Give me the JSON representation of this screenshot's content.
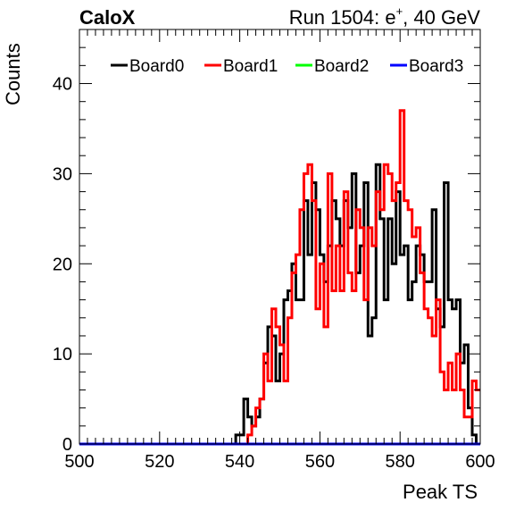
{
  "chart_data": {
    "type": "line",
    "drawstyle": "steps",
    "title_left": "CaloX",
    "title_right": {
      "prefix": "Run 1504: e",
      "sup": "+",
      "suffix": ", 40 GeV"
    },
    "xlabel": "Peak TS",
    "ylabel": "Counts",
    "xlim": [
      500,
      600
    ],
    "ylim": [
      0,
      46
    ],
    "xticks": [
      500,
      520,
      540,
      560,
      580,
      600
    ],
    "yticks": [
      0,
      10,
      20,
      30,
      40
    ],
    "grid": false,
    "legend_placement": "top",
    "bin_start": 500,
    "bin_width": 1,
    "series": [
      {
        "name": "Board0",
        "color": "#000000",
        "values": [
          0,
          0,
          0,
          0,
          0,
          0,
          0,
          0,
          0,
          0,
          0,
          0,
          0,
          0,
          0,
          0,
          0,
          0,
          0,
          0,
          0,
          0,
          0,
          0,
          0,
          0,
          0,
          0,
          0,
          0,
          0,
          0,
          0,
          0,
          0,
          0,
          0,
          0,
          0,
          1,
          1,
          5,
          3,
          2,
          3,
          5,
          9,
          13,
          12,
          7,
          10,
          16,
          17,
          20,
          16,
          16,
          27,
          21,
          29,
          26,
          21,
          18,
          22,
          27,
          25,
          22,
          27,
          24,
          30,
          19,
          22,
          29,
          12,
          14,
          31,
          25,
          16,
          25,
          20,
          28,
          21,
          22,
          16,
          18,
          22,
          21,
          18,
          18,
          26,
          15,
          13,
          29,
          16,
          15,
          16,
          9,
          11,
          4,
          1,
          0
        ]
      },
      {
        "name": "Board1",
        "color": "#ff0000",
        "values": [
          0,
          0,
          0,
          0,
          0,
          0,
          0,
          0,
          0,
          0,
          0,
          0,
          0,
          0,
          0,
          0,
          0,
          0,
          0,
          0,
          0,
          0,
          0,
          0,
          0,
          0,
          0,
          0,
          0,
          0,
          0,
          0,
          0,
          0,
          0,
          0,
          0,
          0,
          0,
          0,
          0,
          0,
          1,
          2,
          4,
          5,
          10,
          7,
          15,
          13,
          11,
          7,
          14,
          19,
          21,
          26,
          30,
          31,
          27,
          15,
          20,
          13,
          30,
          17,
          22,
          17,
          28,
          19,
          17,
          26,
          24,
          16,
          24,
          22,
          28,
          26,
          31,
          30,
          27,
          29,
          37,
          27,
          26,
          23,
          24,
          19,
          15,
          14,
          12,
          16,
          8,
          6,
          9,
          6,
          10,
          6,
          3,
          3,
          7,
          6
        ]
      },
      {
        "name": "Board2",
        "color": "#00ff00",
        "values": [
          0,
          0,
          0,
          0,
          0,
          0,
          0,
          0,
          0,
          0,
          0,
          0,
          0,
          0,
          0,
          0,
          0,
          0,
          0,
          0,
          0,
          0,
          0,
          0,
          0,
          0,
          0,
          0,
          0,
          0,
          0,
          0,
          0,
          0,
          0,
          0,
          0,
          0,
          0,
          0,
          0,
          0,
          0,
          0,
          0,
          0,
          0,
          0,
          0,
          0,
          0,
          0,
          0,
          0,
          0,
          0,
          0,
          0,
          0,
          0,
          0,
          0,
          0,
          0,
          0,
          0,
          0,
          0,
          0,
          0,
          0,
          0,
          0,
          0,
          0,
          0,
          0,
          0,
          0,
          0,
          0,
          0,
          0,
          0,
          0,
          0,
          0,
          0,
          0,
          0,
          0,
          0,
          0,
          0,
          0,
          0,
          0,
          0,
          0,
          0
        ]
      },
      {
        "name": "Board3",
        "color": "#0000ff",
        "values": [
          0,
          0,
          0,
          0,
          0,
          0,
          0,
          0,
          0,
          0,
          0,
          0,
          0,
          0,
          0,
          0,
          0,
          0,
          0,
          0,
          0,
          0,
          0,
          0,
          0,
          0,
          0,
          0,
          0,
          0,
          0,
          0,
          0,
          0,
          0,
          0,
          0,
          0,
          0,
          0,
          0,
          0,
          0,
          0,
          0,
          0,
          0,
          0,
          0,
          0,
          0,
          0,
          0,
          0,
          0,
          0,
          0,
          0,
          0,
          0,
          0,
          0,
          0,
          0,
          0,
          0,
          0,
          0,
          0,
          0,
          0,
          0,
          0,
          0,
          0,
          0,
          0,
          0,
          0,
          0,
          0,
          0,
          0,
          0,
          0,
          0,
          0,
          0,
          0,
          0,
          0,
          0,
          0,
          0,
          0,
          0,
          0,
          0,
          0,
          0
        ]
      }
    ]
  }
}
